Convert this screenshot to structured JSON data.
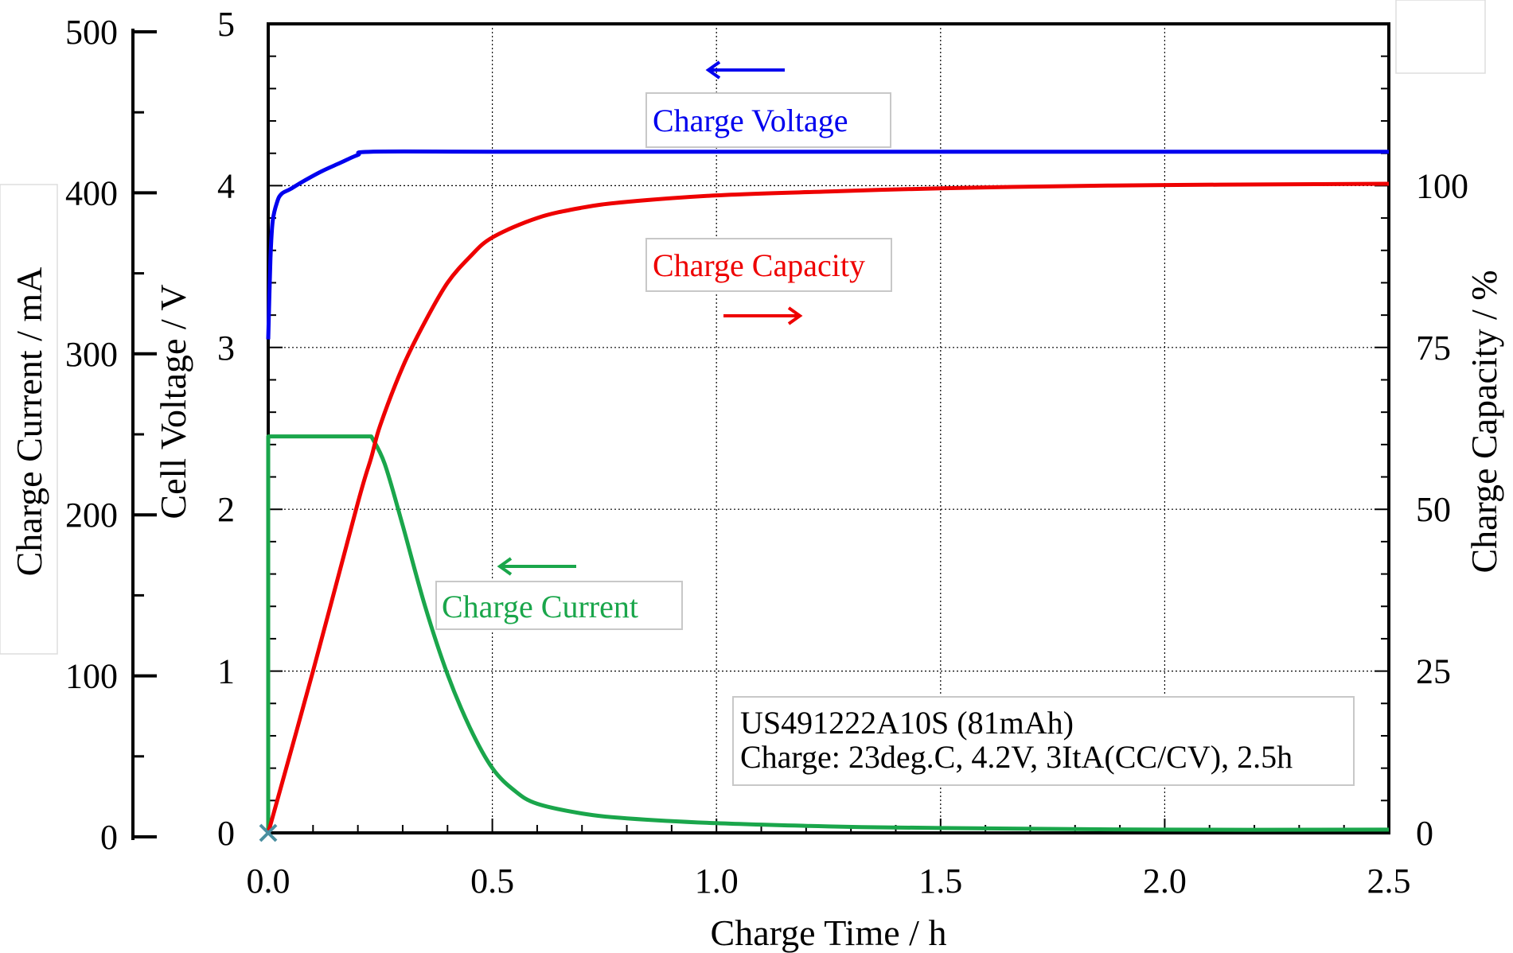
{
  "chart_data": {
    "type": "line",
    "title": "",
    "xlabel": "Charge Time / h",
    "ylabel_voltage": "Cell Voltage / V",
    "ylabel_current": "Charge Current / mA",
    "ylabel_capacity": "Charge Capacity / %",
    "xlim": [
      0,
      2.5
    ],
    "ylim_voltage": [
      0,
      5
    ],
    "ylim_current": [
      0,
      500
    ],
    "ylim_capacity": [
      0,
      125
    ],
    "grid": true,
    "x_ticks": [
      "0.0",
      "0.5",
      "1.0",
      "1.5",
      "2.0",
      "2.5"
    ],
    "voltage_ticks": [
      "0",
      "1",
      "2",
      "3",
      "4",
      "5"
    ],
    "current_ticks": [
      "0",
      "100",
      "200",
      "300",
      "400",
      "500"
    ],
    "capacity_ticks": [
      "0",
      "25",
      "50",
      "75",
      "100"
    ],
    "colors": {
      "voltage": "#0000ee",
      "capacity": "#ee0000",
      "current": "#1aa64b",
      "marker": "#4a8fa0"
    },
    "series": [
      {
        "name": "Charge Voltage",
        "axis": "voltage",
        "x": [
          0,
          0.005,
          0.01,
          0.02,
          0.03,
          0.05,
          0.08,
          0.12,
          0.16,
          0.2,
          0.23,
          0.5,
          1.0,
          1.5,
          2.0,
          2.5
        ],
        "y": [
          3.05,
          3.55,
          3.78,
          3.9,
          3.95,
          3.98,
          4.03,
          4.09,
          4.14,
          4.19,
          4.21,
          4.21,
          4.21,
          4.21,
          4.21,
          4.21
        ]
      },
      {
        "name": "Charge Capacity",
        "axis": "capacity",
        "x": [
          0,
          0.1,
          0.2,
          0.23,
          0.25,
          0.3,
          0.35,
          0.4,
          0.45,
          0.5,
          0.6,
          0.7,
          0.8,
          1.0,
          1.25,
          1.5,
          1.75,
          2.0,
          2.25,
          2.5
        ],
        "y": [
          0,
          25,
          51,
          58,
          63,
          72,
          79,
          85,
          89,
          92,
          95,
          96.6,
          97.5,
          98.5,
          99.1,
          99.6,
          99.9,
          100.1,
          100.2,
          100.3
        ]
      },
      {
        "name": "Charge Current",
        "axis": "current",
        "x": [
          0,
          0,
          0.23,
          0.26,
          0.3,
          0.35,
          0.4,
          0.45,
          0.5,
          0.55,
          0.6,
          0.7,
          0.8,
          1.0,
          1.25,
          1.5,
          2.0,
          2.5
        ],
        "y": [
          0,
          245,
          245,
          228,
          190,
          140,
          98,
          65,
          40,
          26,
          18,
          12,
          9,
          6,
          4,
          3,
          2,
          2
        ]
      }
    ],
    "annotations": {
      "voltage_label": "Charge Voltage",
      "capacity_label": "Charge Capacity",
      "current_label": "Charge Current",
      "info_line1": "US491222A10S (81mAh)",
      "info_line2": "Charge: 23deg.C, 4.2V, 3ItA(CC/CV), 2.5h"
    }
  }
}
